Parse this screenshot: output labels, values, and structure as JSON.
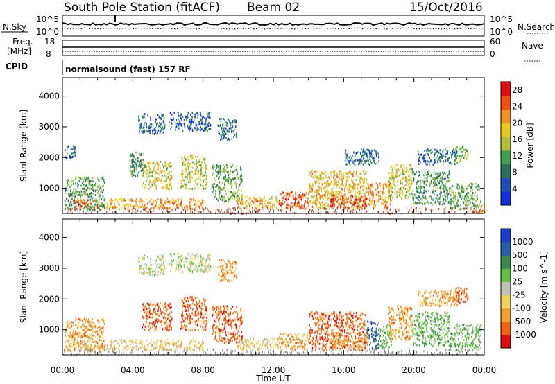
{
  "header": {
    "station": "South Pole Station (fitACF)",
    "beam": "Beam 02",
    "date": "15/Oct/2016"
  },
  "top_panels": {
    "nsky_label": "N.Sky",
    "nsearch_label": "N.Search",
    "nsky_ticks": [
      "10^5",
      "10^0"
    ],
    "nsearch_ticks": [
      "10^5",
      "10^0"
    ],
    "freq_label_1": "Freq.",
    "freq_label_2": "[MHz]",
    "freq_ticks": [
      "18",
      "8"
    ],
    "nave_label": "Nave",
    "nave_ticks": [
      "60",
      "0"
    ],
    "cpid_label": "CPID",
    "cpid_text": "normalsound (fast) 157 RF"
  },
  "chart_data": [
    {
      "type": "heatmap",
      "name": "power",
      "ylabel": "Slant Range [km]",
      "xlabel": "",
      "x_ticks": [
        "00:00",
        "04:00",
        "08:00",
        "12:00",
        "16:00",
        "20:00",
        "00:00"
      ],
      "y_ticks": [
        1000,
        2000,
        3000,
        4000
      ],
      "ylim": [
        180,
        4600
      ],
      "xlim_hours": [
        0,
        24
      ],
      "colorbar": {
        "label": "Power [dB]",
        "ticks": [
          4,
          8,
          12,
          16,
          20,
          24,
          28
        ],
        "range": [
          0,
          30
        ],
        "colors": [
          "#1030e0",
          "#2050b8",
          "#2e7060",
          "#40a050",
          "#b0c040",
          "#e8c820",
          "#f09020",
          "#f05010",
          "#e01010"
        ]
      },
      "regions": [
        {
          "x0": 0.1,
          "x1": 2.4,
          "y0": 300,
          "y1": 1400,
          "level": 11
        },
        {
          "x0": 0.6,
          "x1": 2.0,
          "y0": 380,
          "y1": 650,
          "level": 25
        },
        {
          "x0": 2.4,
          "x1": 8.0,
          "y0": 350,
          "y1": 700,
          "level": 22
        },
        {
          "x0": 4.3,
          "x1": 5.8,
          "y0": 2800,
          "y1": 3450,
          "level": 6
        },
        {
          "x0": 6.0,
          "x1": 8.4,
          "y0": 2900,
          "y1": 3500,
          "level": 5
        },
        {
          "x0": 8.8,
          "x1": 9.9,
          "y0": 2600,
          "y1": 3300,
          "level": 7
        },
        {
          "x0": 4.5,
          "x1": 6.2,
          "y0": 1000,
          "y1": 1900,
          "level": 17
        },
        {
          "x0": 6.7,
          "x1": 8.2,
          "y0": 1000,
          "y1": 2100,
          "level": 16
        },
        {
          "x0": 8.5,
          "x1": 10.2,
          "y0": 600,
          "y1": 1800,
          "level": 12
        },
        {
          "x0": 3.8,
          "x1": 4.7,
          "y0": 1400,
          "y1": 2200,
          "level": 10
        },
        {
          "x0": 0.1,
          "x1": 0.7,
          "y0": 2000,
          "y1": 2400,
          "level": 5
        },
        {
          "x0": 9.9,
          "x1": 12.3,
          "y0": 350,
          "y1": 750,
          "level": 21
        },
        {
          "x0": 12.3,
          "x1": 14.0,
          "y0": 350,
          "y1": 900,
          "level": 27
        },
        {
          "x0": 14.0,
          "x1": 17.3,
          "y0": 350,
          "y1": 1600,
          "level": 20
        },
        {
          "x0": 15.2,
          "x1": 17.3,
          "y0": 400,
          "y1": 800,
          "level": 28
        },
        {
          "x0": 16.0,
          "x1": 18.0,
          "y0": 1800,
          "y1": 2300,
          "level": 6
        },
        {
          "x0": 17.3,
          "x1": 18.7,
          "y0": 400,
          "y1": 1200,
          "level": 23
        },
        {
          "x0": 18.5,
          "x1": 19.9,
          "y0": 700,
          "y1": 1800,
          "level": 17
        },
        {
          "x0": 19.9,
          "x1": 22.0,
          "y0": 500,
          "y1": 1600,
          "level": 10
        },
        {
          "x0": 20.2,
          "x1": 22.5,
          "y0": 1800,
          "y1": 2300,
          "level": 6
        },
        {
          "x0": 22.3,
          "x1": 23.1,
          "y0": 1900,
          "y1": 2400,
          "level": 14
        },
        {
          "x0": 22.0,
          "x1": 23.8,
          "y0": 350,
          "y1": 1200,
          "level": 12
        },
        {
          "x0": 23.5,
          "x1": 24.0,
          "y0": 200,
          "y1": 500,
          "level": 22
        }
      ]
    },
    {
      "type": "heatmap",
      "name": "velocity",
      "ylabel": "Slant Range [km]",
      "xlabel": "Time UT",
      "x_ticks": [
        "00:00",
        "04:00",
        "08:00",
        "12:00",
        "16:00",
        "20:00",
        "00:00"
      ],
      "y_ticks": [
        1000,
        2000,
        3000,
        4000
      ],
      "ylim": [
        180,
        4600
      ],
      "xlim_hours": [
        0,
        24
      ],
      "colorbar": {
        "label": "Velocity [m s^-1]",
        "ticks": [
          "1000",
          "500",
          "100",
          "25",
          "-25",
          "-100",
          "-500",
          "-1000"
        ],
        "colors": [
          "#1a40d0",
          "#2860a8",
          "#3a8a50",
          "#60c040",
          "#c0c0b0",
          "#f0d060",
          "#f0a030",
          "#f06010",
          "#e01010"
        ]
      },
      "regions": [
        {
          "x0": 0.1,
          "x1": 2.4,
          "y0": 300,
          "y1": 1400,
          "vbin": 6
        },
        {
          "x0": 0.6,
          "x1": 2.0,
          "y0": 380,
          "y1": 650,
          "vbin": 5
        },
        {
          "x0": 2.4,
          "x1": 8.0,
          "y0": 350,
          "y1": 700,
          "vbin": 5
        },
        {
          "x0": 4.3,
          "x1": 5.8,
          "y0": 2800,
          "y1": 3450,
          "vbin": 4
        },
        {
          "x0": 6.0,
          "x1": 8.4,
          "y0": 2900,
          "y1": 3500,
          "vbin": 4
        },
        {
          "x0": 8.8,
          "x1": 9.9,
          "y0": 2600,
          "y1": 3300,
          "vbin": 6
        },
        {
          "x0": 4.5,
          "x1": 6.2,
          "y0": 1000,
          "y1": 1900,
          "vbin": 7
        },
        {
          "x0": 6.7,
          "x1": 8.2,
          "y0": 1000,
          "y1": 2100,
          "vbin": 7
        },
        {
          "x0": 8.5,
          "x1": 10.2,
          "y0": 600,
          "y1": 1800,
          "vbin": 7
        },
        {
          "x0": 9.9,
          "x1": 12.3,
          "y0": 350,
          "y1": 750,
          "vbin": 5
        },
        {
          "x0": 12.3,
          "x1": 14.0,
          "y0": 350,
          "y1": 900,
          "vbin": 6
        },
        {
          "x0": 14.0,
          "x1": 17.3,
          "y0": 350,
          "y1": 1600,
          "vbin": 7
        },
        {
          "x0": 15.2,
          "x1": 17.3,
          "y0": 400,
          "y1": 800,
          "vbin": 6
        },
        {
          "x0": 17.3,
          "x1": 18.0,
          "y0": 400,
          "y1": 1300,
          "vbin": 1
        },
        {
          "x0": 18.0,
          "x1": 18.7,
          "y0": 400,
          "y1": 1200,
          "vbin": 3
        },
        {
          "x0": 18.5,
          "x1": 19.9,
          "y0": 700,
          "y1": 1800,
          "vbin": 6
        },
        {
          "x0": 19.9,
          "x1": 22.0,
          "y0": 500,
          "y1": 1600,
          "vbin": 3
        },
        {
          "x0": 20.2,
          "x1": 22.5,
          "y0": 1800,
          "y1": 2300,
          "vbin": 6
        },
        {
          "x0": 22.3,
          "x1": 23.1,
          "y0": 1900,
          "y1": 2400,
          "vbin": 7
        },
        {
          "x0": 22.0,
          "x1": 23.8,
          "y0": 350,
          "y1": 1200,
          "vbin": 3
        }
      ]
    }
  ]
}
